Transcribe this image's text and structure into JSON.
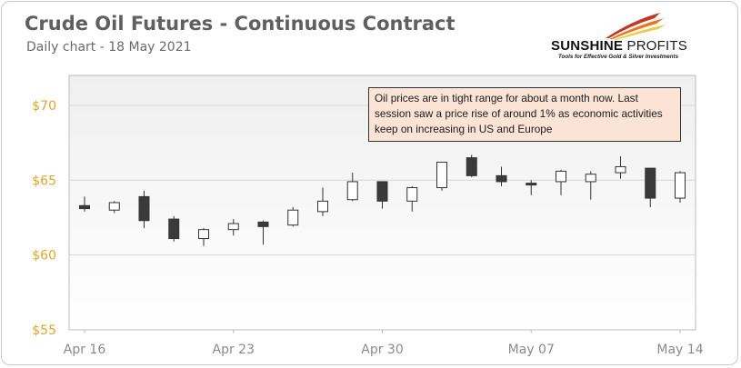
{
  "title": "Crude Oil Futures - Continuous Contract",
  "subtitle": "Daily chart - 18 May 2021",
  "logo": {
    "name_part1": "SUNSHINE",
    "name_part2": "PROFITS",
    "tagline": "Tools for Effective Gold & Silver Investments",
    "colors": [
      "#f2c94c",
      "#e87722",
      "#c0392b"
    ]
  },
  "annotation": "Oil prices are in tight range for about a month now. Last session saw a price rise of around 1% as economic activities keep on increasing in US and Europe",
  "chart_data": {
    "type": "candlestick",
    "title": "Crude Oil Futures - Continuous Contract",
    "subtitle": "Daily chart - 18 May 2021",
    "xlabel": "",
    "ylabel": "",
    "ylim": [
      55,
      72
    ],
    "yticks": [
      55,
      60,
      65,
      70
    ],
    "ytick_labels": [
      "$55",
      "$60",
      "$65",
      "$70"
    ],
    "xtick_labels": [
      "Apr 16",
      "Apr 23",
      "Apr 30",
      "May 07",
      "May 14"
    ],
    "xtick_dates": [
      "2021-04-16",
      "2021-04-23",
      "2021-04-30",
      "2021-05-07",
      "2021-05-14"
    ],
    "grid": true,
    "up_color": "#ffffff",
    "down_color": "#3a3a3a",
    "candles": [
      {
        "date": "2021-04-16",
        "open": 63.3,
        "high": 63.9,
        "low": 62.9,
        "close": 63.1
      },
      {
        "date": "2021-04-19",
        "open": 63.0,
        "high": 63.6,
        "low": 62.8,
        "close": 63.5
      },
      {
        "date": "2021-04-20",
        "open": 63.9,
        "high": 64.3,
        "low": 61.8,
        "close": 62.3
      },
      {
        "date": "2021-04-21",
        "open": 62.4,
        "high": 62.6,
        "low": 60.9,
        "close": 61.1
      },
      {
        "date": "2021-04-22",
        "open": 61.1,
        "high": 61.8,
        "low": 60.6,
        "close": 61.7
      },
      {
        "date": "2021-04-23",
        "open": 61.7,
        "high": 62.4,
        "low": 61.3,
        "close": 62.1
      },
      {
        "date": "2021-04-26",
        "open": 62.2,
        "high": 62.3,
        "low": 60.7,
        "close": 61.9
      },
      {
        "date": "2021-04-27",
        "open": 62.0,
        "high": 63.2,
        "low": 61.9,
        "close": 63.0
      },
      {
        "date": "2021-04-28",
        "open": 62.9,
        "high": 64.5,
        "low": 62.6,
        "close": 63.6
      },
      {
        "date": "2021-04-29",
        "open": 63.7,
        "high": 65.5,
        "low": 63.6,
        "close": 64.9
      },
      {
        "date": "2021-04-30",
        "open": 64.9,
        "high": 64.9,
        "low": 63.1,
        "close": 63.6
      },
      {
        "date": "2021-05-03",
        "open": 63.6,
        "high": 64.6,
        "low": 62.9,
        "close": 64.5
      },
      {
        "date": "2021-05-04",
        "open": 64.5,
        "high": 66.2,
        "low": 64.3,
        "close": 66.2
      },
      {
        "date": "2021-05-05",
        "open": 66.5,
        "high": 66.7,
        "low": 65.2,
        "close": 65.3
      },
      {
        "date": "2021-05-06",
        "open": 65.3,
        "high": 65.9,
        "low": 64.6,
        "close": 64.9
      },
      {
        "date": "2021-05-07",
        "open": 64.8,
        "high": 65.0,
        "low": 64.0,
        "close": 64.7
      },
      {
        "date": "2021-05-10",
        "open": 64.9,
        "high": 65.7,
        "low": 64.0,
        "close": 65.6
      },
      {
        "date": "2021-05-11",
        "open": 64.9,
        "high": 65.6,
        "low": 63.7,
        "close": 65.4
      },
      {
        "date": "2021-05-12",
        "open": 65.5,
        "high": 66.6,
        "low": 65.1,
        "close": 65.9
      },
      {
        "date": "2021-05-13",
        "open": 65.8,
        "high": 65.8,
        "low": 63.2,
        "close": 63.8
      },
      {
        "date": "2021-05-14",
        "open": 63.8,
        "high": 65.6,
        "low": 63.5,
        "close": 65.5
      }
    ]
  }
}
